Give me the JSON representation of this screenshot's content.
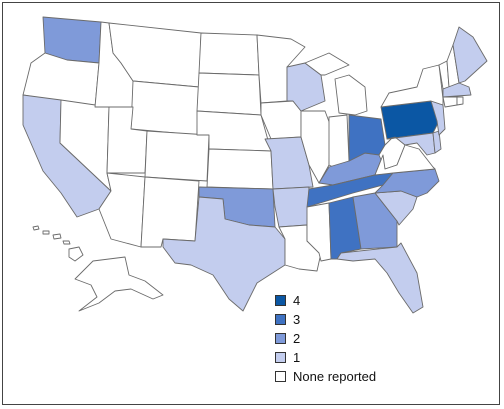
{
  "legend": [
    {
      "label": "4",
      "color": "#0b57a4"
    },
    {
      "label": "3",
      "color": "#3f72c2"
    },
    {
      "label": "2",
      "color": "#7f9ad9"
    },
    {
      "label": "1",
      "color": "#c3cdee"
    },
    {
      "label": "None reported",
      "color": "#ffffff"
    }
  ],
  "state_levels": {
    "PA": 4,
    "OH": 3,
    "TN": 3,
    "AL": 3,
    "WA": 2,
    "OK": 2,
    "KY": 2,
    "GA": 2,
    "NC": 2,
    "CA": 1,
    "TX": 1,
    "WI": 1,
    "MO": 1,
    "AR": 1,
    "SC": 1,
    "FL": 1,
    "ME": 1,
    "MA": 1,
    "NJ": 1,
    "DE": 1,
    "MD": 1,
    "OR": 0,
    "ID": 0,
    "MT": 0,
    "WY": 0,
    "NV": 0,
    "UT": 0,
    "CO": 0,
    "AZ": 0,
    "NM": 0,
    "ND": 0,
    "SD": 0,
    "NE": 0,
    "KS": 0,
    "MN": 0,
    "IA": 0,
    "IL": 0,
    "IN": 0,
    "MI": 0,
    "LA": 0,
    "MS": 0,
    "WV": 0,
    "VA": 0,
    "NY": 0,
    "VT": 0,
    "NH": 0,
    "CT": 0,
    "RI": 0,
    "AK": 0,
    "HI": 0
  }
}
